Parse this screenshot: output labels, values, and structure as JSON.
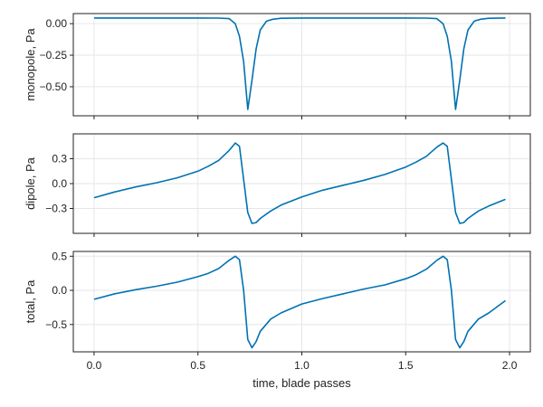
{
  "chart_data": [
    {
      "type": "line",
      "ylabel": "monopole, Pa",
      "xlabel": "",
      "xlim": [
        -0.1,
        2.1
      ],
      "ylim": [
        -0.73,
        0.08
      ],
      "yticks": [
        0.0,
        -0.25,
        -0.5
      ],
      "ytick_labels": [
        "0.00",
        "−0.25",
        "−0.50"
      ],
      "grid": true,
      "color": "#0072b2",
      "series": [
        {
          "x": [
            0.0,
            0.1,
            0.2,
            0.3,
            0.4,
            0.5,
            0.6,
            0.65,
            0.68,
            0.7,
            0.72,
            0.74,
            0.76,
            0.78,
            0.8,
            0.83,
            0.86,
            0.9,
            1.0,
            1.1,
            1.2,
            1.3,
            1.4,
            1.5,
            1.6,
            1.65,
            1.68,
            1.7,
            1.72,
            1.74,
            1.76,
            1.78,
            1.8,
            1.83,
            1.86,
            1.9,
            1.98
          ],
          "y": [
            0.045,
            0.045,
            0.045,
            0.045,
            0.045,
            0.045,
            0.044,
            0.04,
            0.0,
            -0.1,
            -0.3,
            -0.68,
            -0.45,
            -0.2,
            -0.05,
            0.02,
            0.035,
            0.043,
            0.045,
            0.045,
            0.045,
            0.045,
            0.045,
            0.045,
            0.044,
            0.04,
            0.0,
            -0.1,
            -0.3,
            -0.68,
            -0.45,
            -0.2,
            -0.05,
            0.02,
            0.035,
            0.043,
            0.045
          ]
        }
      ]
    },
    {
      "type": "line",
      "ylabel": "dipole, Pa",
      "xlabel": "",
      "xlim": [
        -0.1,
        2.1
      ],
      "ylim": [
        -0.6,
        0.6
      ],
      "yticks": [
        0.3,
        0.0,
        -0.3
      ],
      "ytick_labels": [
        "0.3",
        "0.0",
        "−0.3"
      ],
      "grid": true,
      "color": "#0072b2",
      "series": [
        {
          "x": [
            0.0,
            0.1,
            0.2,
            0.3,
            0.4,
            0.5,
            0.55,
            0.6,
            0.65,
            0.68,
            0.7,
            0.72,
            0.74,
            0.76,
            0.78,
            0.8,
            0.85,
            0.9,
            1.0,
            1.1,
            1.2,
            1.3,
            1.4,
            1.5,
            1.55,
            1.6,
            1.65,
            1.68,
            1.7,
            1.72,
            1.74,
            1.76,
            1.78,
            1.8,
            1.85,
            1.9,
            1.98
          ],
          "y": [
            -0.17,
            -0.1,
            -0.04,
            0.01,
            0.07,
            0.15,
            0.21,
            0.28,
            0.4,
            0.49,
            0.45,
            0.05,
            -0.35,
            -0.48,
            -0.47,
            -0.42,
            -0.33,
            -0.26,
            -0.16,
            -0.08,
            -0.02,
            0.04,
            0.11,
            0.2,
            0.26,
            0.33,
            0.44,
            0.49,
            0.45,
            0.05,
            -0.35,
            -0.48,
            -0.47,
            -0.42,
            -0.33,
            -0.27,
            -0.19
          ]
        }
      ]
    },
    {
      "type": "line",
      "ylabel": "total, Pa",
      "xlabel": "time, blade passes",
      "xlim": [
        -0.1,
        2.1
      ],
      "ylim": [
        -0.9,
        0.57
      ],
      "xticks": [
        0.0,
        0.5,
        1.0,
        1.5,
        2.0
      ],
      "xtick_labels": [
        "0.0",
        "0.5",
        "1.0",
        "1.5",
        "2.0"
      ],
      "yticks": [
        0.5,
        0.0,
        -0.5
      ],
      "ytick_labels": [
        "0.5",
        "0.0",
        "−0.5"
      ],
      "grid": true,
      "color": "#0072b2",
      "series": [
        {
          "x": [
            0.0,
            0.1,
            0.2,
            0.3,
            0.4,
            0.5,
            0.55,
            0.6,
            0.65,
            0.68,
            0.7,
            0.72,
            0.74,
            0.76,
            0.78,
            0.8,
            0.85,
            0.9,
            1.0,
            1.1,
            1.2,
            1.3,
            1.4,
            1.5,
            1.55,
            1.6,
            1.65,
            1.68,
            1.7,
            1.72,
            1.74,
            1.76,
            1.78,
            1.8,
            1.85,
            1.9,
            1.98
          ],
          "y": [
            -0.13,
            -0.05,
            0.01,
            0.06,
            0.12,
            0.2,
            0.25,
            0.32,
            0.44,
            0.5,
            0.45,
            0.0,
            -0.72,
            -0.84,
            -0.75,
            -0.6,
            -0.42,
            -0.33,
            -0.2,
            -0.12,
            -0.05,
            0.02,
            0.08,
            0.17,
            0.23,
            0.31,
            0.44,
            0.5,
            0.45,
            0.0,
            -0.72,
            -0.84,
            -0.75,
            -0.6,
            -0.42,
            -0.33,
            -0.15
          ]
        }
      ]
    }
  ]
}
